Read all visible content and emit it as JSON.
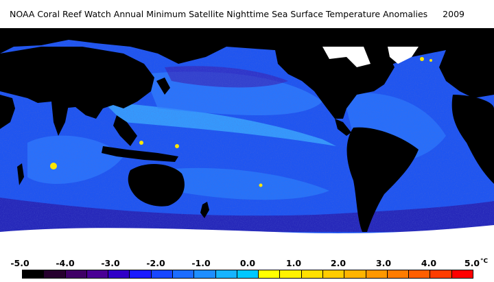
{
  "title": "NOAA Coral Reef Watch Annual Minimum Satellite Nighttime Sea Surface Temperature Anomalies",
  "year": "2009",
  "legend": {
    "tick_labels": [
      "-5.0",
      "-4.0",
      "-3.0",
      "-2.0",
      "-1.0",
      "0.0",
      "1.0",
      "2.0",
      "3.0",
      "4.0",
      "5.0"
    ],
    "unit": "°C",
    "colors": [
      "#000000",
      "#26002e",
      "#3f0066",
      "#4a0095",
      "#3000c8",
      "#1a1aff",
      "#1846ff",
      "#1c6cff",
      "#1e8eff",
      "#17b4ff",
      "#00c8ff",
      "#ffff00",
      "#fff200",
      "#ffe000",
      "#ffcc00",
      "#ffb400",
      "#ff9800",
      "#ff7c00",
      "#ff5e00",
      "#ff3c00",
      "#ff0000"
    ]
  },
  "map_colors": {
    "land": "#000000",
    "ice": "#ffffff",
    "ocean_base": "#1f55f0",
    "warm_band": "#3aa6ff",
    "cool_patch": "#2a1aa8",
    "hot_spot": "#ffe600"
  }
}
